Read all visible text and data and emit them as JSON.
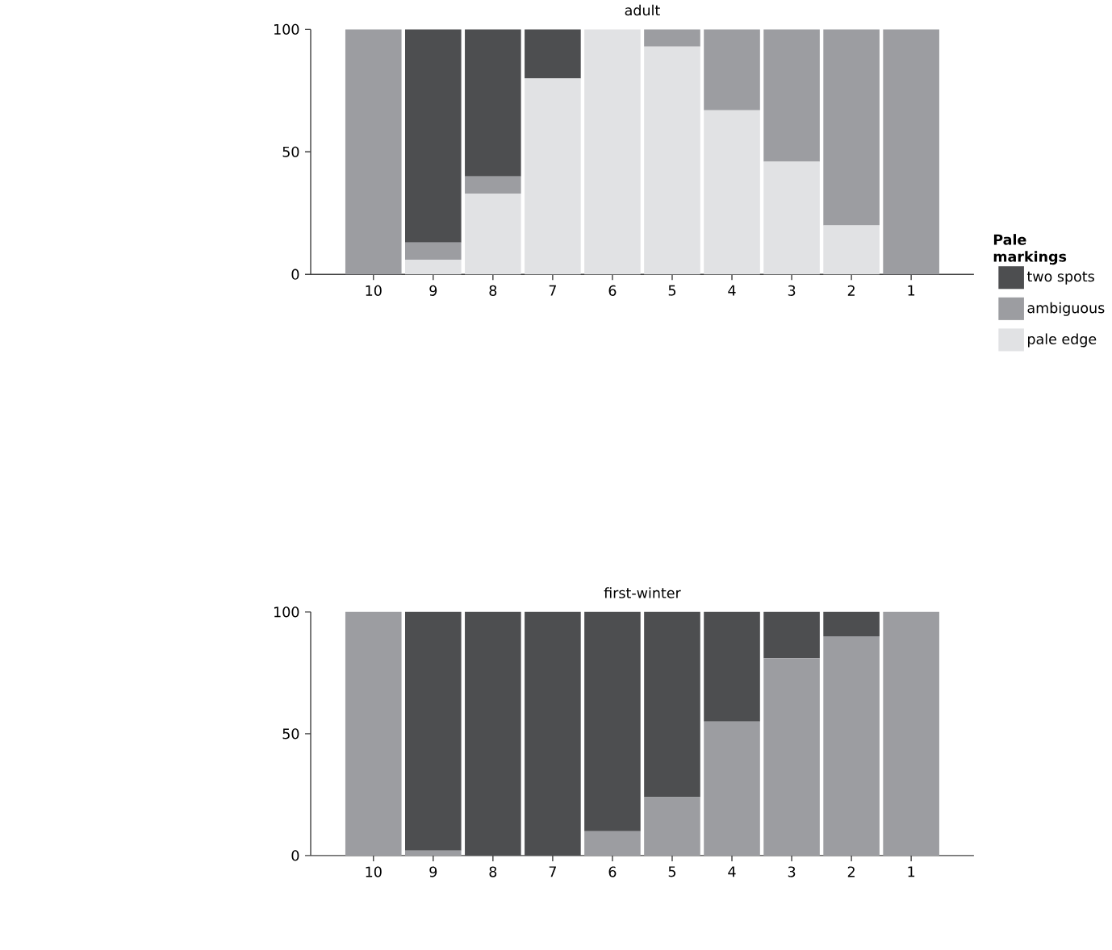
{
  "chart_data": [
    {
      "type": "bar",
      "title": "adult",
      "stacked": true,
      "categories": [
        "10",
        "9",
        "8",
        "7",
        "6",
        "5",
        "4",
        "3",
        "2",
        "1"
      ],
      "ylim": [
        0,
        100
      ],
      "yticks": [
        0,
        50,
        100
      ],
      "legend": "right",
      "legend_title": "Pale markings",
      "series": [
        {
          "name": "pale edge",
          "color": "#e1e2e4",
          "values": [
            0,
            6,
            33,
            80,
            100,
            93,
            67,
            46,
            20,
            0
          ]
        },
        {
          "name": "ambiguous",
          "color": "#9c9da1",
          "values": [
            100,
            7,
            7,
            0,
            0,
            7,
            33,
            54,
            80,
            100
          ]
        },
        {
          "name": "two spots",
          "color": "#4d4e50",
          "values": [
            0,
            87,
            60,
            20,
            0,
            0,
            0,
            0,
            0,
            0
          ]
        }
      ]
    },
    {
      "type": "bar",
      "title": "first-winter",
      "stacked": true,
      "categories": [
        "10",
        "9",
        "8",
        "7",
        "6",
        "5",
        "4",
        "3",
        "2",
        "1"
      ],
      "ylim": [
        0,
        100
      ],
      "yticks": [
        0,
        50,
        100
      ],
      "series": [
        {
          "color": "#9c9da1",
          "values": [
            100,
            2,
            0,
            0,
            10,
            24,
            55,
            81,
            90,
            100
          ]
        },
        {
          "color": "#4d4e50",
          "values": [
            0,
            98,
            100,
            100,
            90,
            76,
            45,
            19,
            10,
            0
          ]
        }
      ]
    }
  ]
}
